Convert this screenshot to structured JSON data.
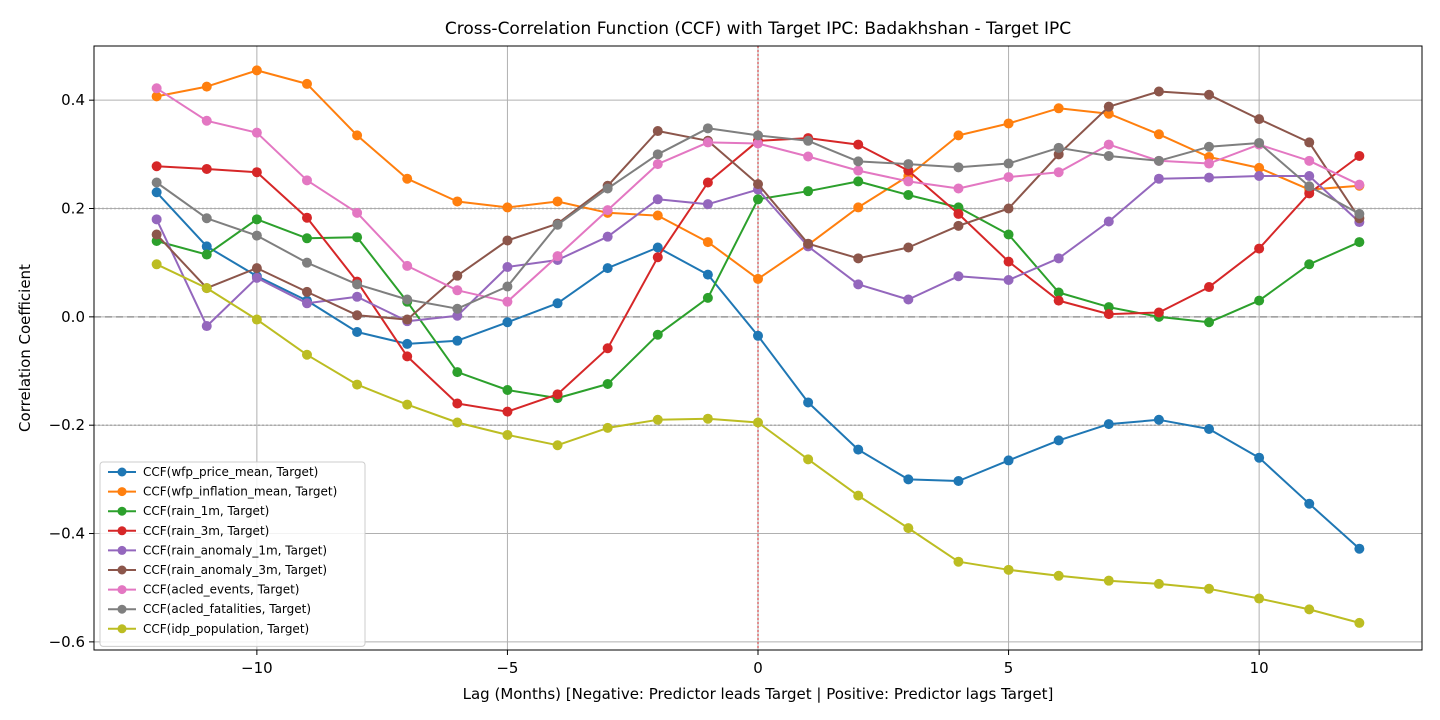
{
  "chart_data": {
    "type": "line",
    "title": "Cross-Correlation Function (CCF) with Target IPC: Badakhshan - Target IPC",
    "xlabel": "Lag (Months) [Negative: Predictor leads Target | Positive: Predictor lags Target]",
    "ylabel": "Correlation Coefficient",
    "xlim": [
      -13.25,
      13.25
    ],
    "ylim": [
      -0.615,
      0.5
    ],
    "xticks": [
      -10,
      -5,
      0,
      5,
      10
    ],
    "xtick_labels": [
      "−10",
      "−5",
      "0",
      "5",
      "10"
    ],
    "yticks": [
      -0.6,
      -0.4,
      -0.2,
      0.0,
      0.2,
      0.4
    ],
    "ytick_labels": [
      "−0.6",
      "−0.4",
      "−0.2",
      "0.0",
      "0.2",
      "0.4"
    ],
    "grid": true,
    "legend_position": "lower-left",
    "reference_lines": {
      "zero": 0.0,
      "significance": [
        0.2,
        -0.2
      ],
      "lag_zero": 0
    },
    "x": [
      -12,
      -11,
      -10,
      -9,
      -8,
      -7,
      -6,
      -5,
      -4,
      -3,
      -2,
      -1,
      0,
      1,
      2,
      3,
      4,
      5,
      6,
      7,
      8,
      9,
      10,
      11,
      12
    ],
    "series": [
      {
        "name": "CCF(wfp_price_mean, Target)",
        "color": "#1f77b4",
        "values": [
          0.23,
          0.13,
          0.075,
          0.03,
          -0.028,
          -0.05,
          -0.044,
          -0.01,
          0.025,
          0.09,
          0.128,
          0.078,
          -0.035,
          -0.158,
          -0.245,
          -0.3,
          -0.303,
          -0.265,
          -0.228,
          -0.198,
          -0.19,
          -0.207,
          -0.26,
          -0.345,
          -0.428
        ]
      },
      {
        "name": "CCF(wfp_inflation_mean, Target)",
        "color": "#ff7f0e",
        "values": [
          0.407,
          0.425,
          0.455,
          0.43,
          0.335,
          0.255,
          0.213,
          0.202,
          0.213,
          0.192,
          0.187,
          0.138,
          0.07,
          0.133,
          0.202,
          0.26,
          0.335,
          0.357,
          0.385,
          0.375,
          0.337,
          0.295,
          0.275,
          0.235,
          0.242
        ]
      },
      {
        "name": "CCF(rain_1m, Target)",
        "color": "#2ca02c",
        "values": [
          0.14,
          0.115,
          0.18,
          0.145,
          0.147,
          0.028,
          -0.102,
          -0.135,
          -0.15,
          -0.124,
          -0.033,
          0.035,
          0.217,
          0.232,
          0.25,
          0.225,
          0.202,
          0.152,
          0.045,
          0.018,
          0.0,
          -0.01,
          0.03,
          0.097,
          0.138
        ]
      },
      {
        "name": "CCF(rain_3m, Target)",
        "color": "#d62728",
        "values": [
          0.278,
          0.273,
          0.267,
          0.183,
          0.065,
          -0.073,
          -0.16,
          -0.175,
          -0.143,
          -0.058,
          0.11,
          0.248,
          0.325,
          0.33,
          0.318,
          0.27,
          0.19,
          0.102,
          0.03,
          0.005,
          0.008,
          0.055,
          0.126,
          0.228,
          0.297
        ]
      },
      {
        "name": "CCF(rain_anomaly_1m, Target)",
        "color": "#9467bd",
        "values": [
          0.18,
          -0.017,
          0.072,
          0.025,
          0.037,
          -0.008,
          0.002,
          0.092,
          0.105,
          0.148,
          0.217,
          0.208,
          0.235,
          0.13,
          0.06,
          0.032,
          0.075,
          0.068,
          0.108,
          0.176,
          0.255,
          0.257,
          0.26,
          0.26,
          0.175
        ]
      },
      {
        "name": "CCF(rain_anomaly_3m, Target)",
        "color": "#8c564b",
        "values": [
          0.152,
          0.053,
          0.09,
          0.046,
          0.003,
          -0.005,
          0.076,
          0.141,
          0.172,
          0.242,
          0.343,
          0.325,
          0.245,
          0.135,
          0.108,
          0.128,
          0.168,
          0.2,
          0.3,
          0.388,
          0.416,
          0.41,
          0.365,
          0.322,
          0.182
        ]
      },
      {
        "name": "CCF(acled_events, Target)",
        "color": "#e377c2",
        "values": [
          0.422,
          0.362,
          0.34,
          0.252,
          0.192,
          0.094,
          0.049,
          0.028,
          0.112,
          0.197,
          0.282,
          0.322,
          0.32,
          0.296,
          0.27,
          0.25,
          0.237,
          0.258,
          0.267,
          0.318,
          0.288,
          0.283,
          0.318,
          0.288,
          0.244
        ]
      },
      {
        "name": "CCF(acled_fatalities, Target)",
        "color": "#7f7f7f",
        "values": [
          0.248,
          0.182,
          0.15,
          0.1,
          0.06,
          0.032,
          0.015,
          0.056,
          0.17,
          0.237,
          0.3,
          0.348,
          0.335,
          0.325,
          0.287,
          0.282,
          0.276,
          0.283,
          0.312,
          0.297,
          0.288,
          0.314,
          0.321,
          0.241,
          0.19
        ]
      },
      {
        "name": "CCF(idp_population, Target)",
        "color": "#bcbd22",
        "values": [
          0.097,
          0.053,
          -0.005,
          -0.07,
          -0.125,
          -0.162,
          -0.195,
          -0.218,
          -0.237,
          -0.205,
          -0.19,
          -0.188,
          -0.195,
          -0.263,
          -0.33,
          -0.39,
          -0.452,
          -0.467,
          -0.478,
          -0.487,
          -0.493,
          -0.502,
          -0.52,
          -0.54,
          -0.565
        ]
      }
    ]
  }
}
